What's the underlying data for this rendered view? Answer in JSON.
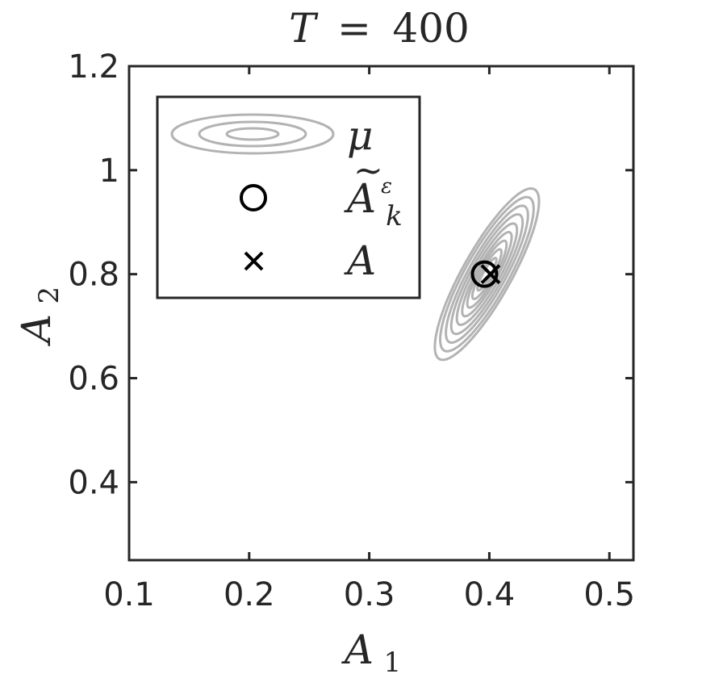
{
  "chart_data": {
    "type": "scatter",
    "title": {
      "var": "T",
      "eq": "=",
      "value": "400"
    },
    "xlabel": {
      "base": "A",
      "sub": "1"
    },
    "ylabel": {
      "base": "A",
      "sub": "2"
    },
    "xlim": [
      0.1,
      0.52
    ],
    "ylim": [
      0.25,
      1.2
    ],
    "x_ticks": [
      "0.1",
      "0.2",
      "0.3",
      "0.4",
      "0.5"
    ],
    "y_ticks": [
      "0.4",
      "0.6",
      "0.8",
      "1",
      "1.2"
    ],
    "x_tick_values": [
      0.1,
      0.2,
      0.3,
      0.4,
      0.5
    ],
    "y_tick_values": [
      0.4,
      0.6,
      0.8,
      1.0,
      1.2
    ],
    "grid": false,
    "legend_position": "top-left",
    "legend": [
      {
        "symbol": "contour",
        "label": "μ"
      },
      {
        "symbol": "circle",
        "label_base": "A",
        "label_sup": "ε",
        "label_sub": "k",
        "accent": "~"
      },
      {
        "symbol": "cross",
        "label": "A"
      }
    ],
    "contour": {
      "center": [
        0.398,
        0.8
      ],
      "angle_deg": 61,
      "levels": [
        {
          "a": 0.169,
          "b": 0.0225
        },
        {
          "a": 0.152,
          "b": 0.02
        },
        {
          "a": 0.135,
          "b": 0.017
        },
        {
          "a": 0.118,
          "b": 0.0145
        },
        {
          "a": 0.1,
          "b": 0.012
        },
        {
          "a": 0.083,
          "b": 0.0095
        },
        {
          "a": 0.066,
          "b": 0.0075
        },
        {
          "a": 0.049,
          "b": 0.0055
        },
        {
          "a": 0.032,
          "b": 0.0035
        }
      ]
    },
    "estimate": {
      "x": 0.396,
      "y": 0.8
    },
    "true_value": {
      "x": 0.401,
      "y": 0.8
    },
    "colors": {
      "contour": "#b3b3b3",
      "marker": "#000000",
      "axis": "#262626"
    }
  }
}
